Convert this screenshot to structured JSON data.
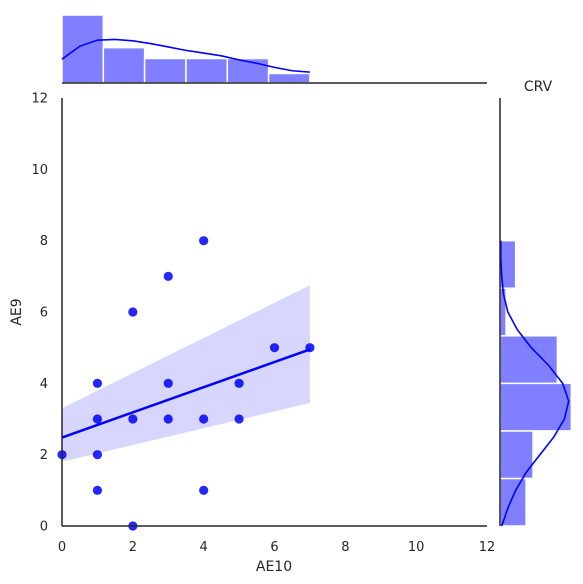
{
  "chart_data": {
    "type": "scatter",
    "title": "CRV",
    "xlabel": "AE10",
    "ylabel": "AE9",
    "xlim": [
      0,
      12
    ],
    "ylim": [
      0,
      12
    ],
    "xticks": [
      "0",
      "2",
      "4",
      "6",
      "8",
      "10",
      "12"
    ],
    "yticks": [
      "0",
      "2",
      "4",
      "6",
      "8",
      "10",
      "12"
    ],
    "grid": false,
    "colors": {
      "points": "#0000ff",
      "band": "#c8c8ff",
      "hist": "#7f7fff"
    },
    "points": [
      {
        "x": 0,
        "y": 2
      },
      {
        "x": 1,
        "y": 1
      },
      {
        "x": 1,
        "y": 2
      },
      {
        "x": 1,
        "y": 3
      },
      {
        "x": 1,
        "y": 4
      },
      {
        "x": 2,
        "y": 0
      },
      {
        "x": 2,
        "y": 3
      },
      {
        "x": 2,
        "y": 6
      },
      {
        "x": 3,
        "y": 3
      },
      {
        "x": 3,
        "y": 4
      },
      {
        "x": 3,
        "y": 7
      },
      {
        "x": 4,
        "y": 1
      },
      {
        "x": 4,
        "y": 3
      },
      {
        "x": 4,
        "y": 8
      },
      {
        "x": 5,
        "y": 3
      },
      {
        "x": 5,
        "y": 4
      },
      {
        "x": 6,
        "y": 5
      },
      {
        "x": 7,
        "y": 5
      }
    ],
    "regression": {
      "x": [
        0,
        7
      ],
      "y": [
        2.48,
        4.95
      ],
      "ci_upper": [
        3.3,
        6.75
      ],
      "ci_lower": [
        1.8,
        3.45
      ]
    },
    "x_hist": {
      "bin_edges": [
        0,
        1.167,
        2.333,
        3.5,
        4.667,
        5.833,
        7.0
      ],
      "counts": [
        5,
        2.6,
        1.8,
        1.8,
        1.8,
        0.7
      ],
      "kde_x": [
        0,
        0.5,
        1,
        1.5,
        2,
        2.5,
        3,
        3.5,
        4,
        4.5,
        5,
        5.5,
        6,
        6.5,
        7
      ],
      "kde_y": [
        1.75,
        2.7,
        3.15,
        3.2,
        3.1,
        2.9,
        2.65,
        2.4,
        2.2,
        2.0,
        1.7,
        1.45,
        1.15,
        0.9,
        0.8
      ]
    },
    "y_hist": {
      "bin_edges": [
        0,
        1.333,
        2.667,
        4.0,
        5.333,
        6.667,
        8.0
      ],
      "counts": [
        1.5,
        1.9,
        4.1,
        3.3,
        0.35,
        0.9
      ],
      "kde_y": [
        0,
        0.5,
        1,
        1.5,
        2,
        2.5,
        3,
        3.5,
        4,
        4.5,
        5,
        5.5,
        6,
        6.5,
        7,
        7.5,
        8
      ],
      "kde_x": [
        0.1,
        0.45,
        0.9,
        1.5,
        2.3,
        3.1,
        3.7,
        3.95,
        3.6,
        2.8,
        1.8,
        1.0,
        0.45,
        0.2,
        0.1,
        0.05,
        0.05
      ]
    }
  }
}
